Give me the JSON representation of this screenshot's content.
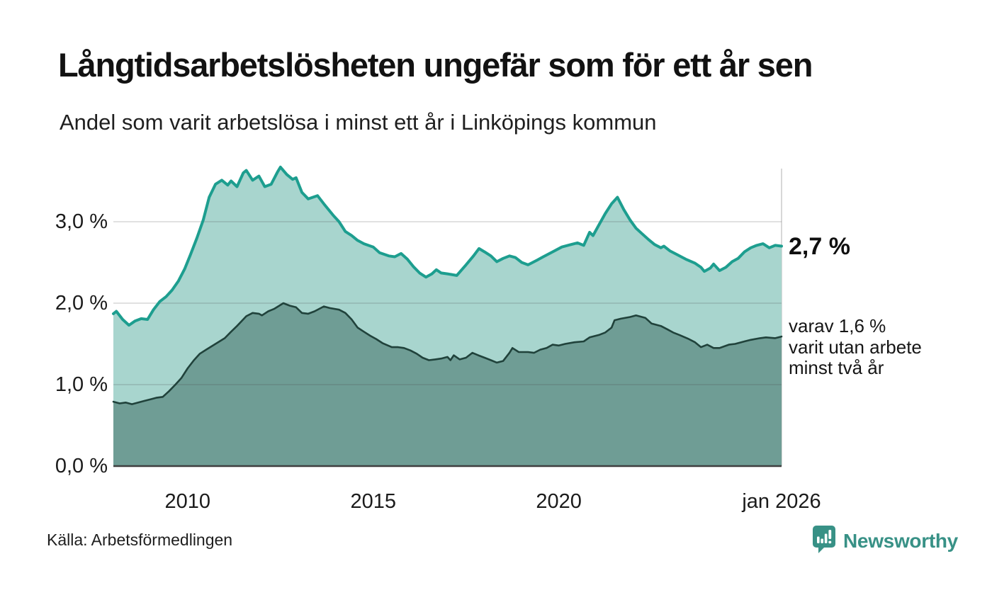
{
  "header": {
    "title": "Långtidsarbetslösheten ungefär som för ett år sen",
    "subtitle": "Andel som varit arbetslösa i minst ett år i Linköpings kommun"
  },
  "footer": {
    "source": "Källa: Arbetsförmedlingen",
    "brand_name": "Newsworthy"
  },
  "colors": {
    "teal_line": "#1D9E8F",
    "light_fill": "#A8D5CE",
    "dark_line": "#20423B",
    "dark_fill": "#6F9D95",
    "gridline": "rgba(70,70,70,0.16)",
    "baseline": "#3F3F3F",
    "plot_right_edge": "#D8D8D8",
    "brand": "#389186",
    "text": "#141414"
  },
  "chart_data": {
    "type": "area",
    "title": "Långtidsarbetslösheten ungefär som för ett år sen",
    "subtitle": "Andel som varit arbetslösa i minst ett år i Linköpings kommun",
    "xlabel": "",
    "ylabel": "",
    "xlim": [
      2008,
      2026
    ],
    "ylim": [
      0,
      3.8
    ],
    "grid": "horizontal",
    "legend": "none",
    "x_ticks": [
      {
        "x": 2010,
        "label": "2010"
      },
      {
        "x": 2015,
        "label": "2015"
      },
      {
        "x": 2020,
        "label": "2020"
      },
      {
        "x": 2026,
        "label": "jan 2026"
      }
    ],
    "y_ticks": [
      {
        "y": 0,
        "label": "0,0 %"
      },
      {
        "y": 1,
        "label": "1,0 %"
      },
      {
        "y": 2,
        "label": "2,0 %"
      },
      {
        "y": 3,
        "label": "3,0 %"
      }
    ],
    "annotations": {
      "end_value_label": "2,7 %",
      "breakdown_lines": [
        "varav 1,6 %",
        "varit utan arbete",
        "minst två år"
      ]
    },
    "series": [
      {
        "name": "Andel arbetslösa minst ett år",
        "end_value": 2.7,
        "line_color": "#1D9E8F",
        "fill_color": "#A8D5CE",
        "points": [
          [
            2008.0,
            1.87
          ],
          [
            2008.08,
            1.9
          ],
          [
            2008.25,
            1.8
          ],
          [
            2008.42,
            1.73
          ],
          [
            2008.58,
            1.78
          ],
          [
            2008.75,
            1.81
          ],
          [
            2008.92,
            1.8
          ],
          [
            2009.08,
            1.92
          ],
          [
            2009.25,
            2.02
          ],
          [
            2009.42,
            2.08
          ],
          [
            2009.58,
            2.16
          ],
          [
            2009.75,
            2.27
          ],
          [
            2009.92,
            2.42
          ],
          [
            2010.08,
            2.6
          ],
          [
            2010.25,
            2.8
          ],
          [
            2010.42,
            3.02
          ],
          [
            2010.58,
            3.3
          ],
          [
            2010.75,
            3.46
          ],
          [
            2010.92,
            3.51
          ],
          [
            2011.08,
            3.45
          ],
          [
            2011.17,
            3.5
          ],
          [
            2011.33,
            3.43
          ],
          [
            2011.5,
            3.6
          ],
          [
            2011.58,
            3.63
          ],
          [
            2011.75,
            3.51
          ],
          [
            2011.92,
            3.56
          ],
          [
            2012.08,
            3.43
          ],
          [
            2012.25,
            3.46
          ],
          [
            2012.42,
            3.61
          ],
          [
            2012.5,
            3.67
          ],
          [
            2012.67,
            3.58
          ],
          [
            2012.83,
            3.52
          ],
          [
            2012.92,
            3.54
          ],
          [
            2013.08,
            3.36
          ],
          [
            2013.25,
            3.28
          ],
          [
            2013.5,
            3.32
          ],
          [
            2013.67,
            3.22
          ],
          [
            2013.92,
            3.08
          ],
          [
            2014.08,
            3.0
          ],
          [
            2014.25,
            2.88
          ],
          [
            2014.42,
            2.83
          ],
          [
            2014.58,
            2.77
          ],
          [
            2014.75,
            2.73
          ],
          [
            2015.0,
            2.69
          ],
          [
            2015.17,
            2.62
          ],
          [
            2015.42,
            2.58
          ],
          [
            2015.58,
            2.57
          ],
          [
            2015.75,
            2.61
          ],
          [
            2015.92,
            2.54
          ],
          [
            2016.08,
            2.45
          ],
          [
            2016.25,
            2.37
          ],
          [
            2016.42,
            2.32
          ],
          [
            2016.58,
            2.36
          ],
          [
            2016.7,
            2.41
          ],
          [
            2016.83,
            2.37
          ],
          [
            2017.0,
            2.36
          ],
          [
            2017.25,
            2.34
          ],
          [
            2017.5,
            2.47
          ],
          [
            2017.7,
            2.58
          ],
          [
            2017.85,
            2.67
          ],
          [
            2018.0,
            2.63
          ],
          [
            2018.17,
            2.58
          ],
          [
            2018.33,
            2.51
          ],
          [
            2018.5,
            2.55
          ],
          [
            2018.67,
            2.58
          ],
          [
            2018.83,
            2.56
          ],
          [
            2019.0,
            2.5
          ],
          [
            2019.17,
            2.47
          ],
          [
            2019.42,
            2.53
          ],
          [
            2019.58,
            2.57
          ],
          [
            2019.83,
            2.63
          ],
          [
            2020.08,
            2.69
          ],
          [
            2020.33,
            2.72
          ],
          [
            2020.5,
            2.74
          ],
          [
            2020.67,
            2.71
          ],
          [
            2020.83,
            2.87
          ],
          [
            2020.92,
            2.83
          ],
          [
            2021.08,
            2.96
          ],
          [
            2021.25,
            3.1
          ],
          [
            2021.42,
            3.22
          ],
          [
            2021.58,
            3.3
          ],
          [
            2021.75,
            3.15
          ],
          [
            2021.92,
            3.02
          ],
          [
            2022.08,
            2.92
          ],
          [
            2022.25,
            2.85
          ],
          [
            2022.42,
            2.78
          ],
          [
            2022.58,
            2.72
          ],
          [
            2022.75,
            2.68
          ],
          [
            2022.83,
            2.7
          ],
          [
            2023.0,
            2.64
          ],
          [
            2023.17,
            2.6
          ],
          [
            2023.42,
            2.54
          ],
          [
            2023.67,
            2.49
          ],
          [
            2023.83,
            2.44
          ],
          [
            2023.92,
            2.39
          ],
          [
            2024.08,
            2.43
          ],
          [
            2024.17,
            2.48
          ],
          [
            2024.33,
            2.4
          ],
          [
            2024.5,
            2.44
          ],
          [
            2024.67,
            2.51
          ],
          [
            2024.83,
            2.55
          ],
          [
            2025.0,
            2.63
          ],
          [
            2025.17,
            2.68
          ],
          [
            2025.33,
            2.71
          ],
          [
            2025.5,
            2.73
          ],
          [
            2025.67,
            2.68
          ],
          [
            2025.83,
            2.71
          ],
          [
            2026.0,
            2.7
          ]
        ]
      },
      {
        "name": "Andel arbetslösa minst två år",
        "end_value": 1.6,
        "line_color": "#20423B",
        "fill_color": "#6F9D95",
        "points": [
          [
            2008.0,
            0.79
          ],
          [
            2008.17,
            0.77
          ],
          [
            2008.33,
            0.78
          ],
          [
            2008.5,
            0.76
          ],
          [
            2008.67,
            0.78
          ],
          [
            2008.83,
            0.8
          ],
          [
            2009.0,
            0.82
          ],
          [
            2009.17,
            0.84
          ],
          [
            2009.33,
            0.85
          ],
          [
            2009.5,
            0.92
          ],
          [
            2009.67,
            1.0
          ],
          [
            2009.83,
            1.08
          ],
          [
            2010.0,
            1.2
          ],
          [
            2010.17,
            1.3
          ],
          [
            2010.33,
            1.38
          ],
          [
            2010.5,
            1.43
          ],
          [
            2010.75,
            1.5
          ],
          [
            2011.0,
            1.57
          ],
          [
            2011.17,
            1.65
          ],
          [
            2011.33,
            1.72
          ],
          [
            2011.58,
            1.84
          ],
          [
            2011.75,
            1.88
          ],
          [
            2011.92,
            1.87
          ],
          [
            2012.0,
            1.85
          ],
          [
            2012.17,
            1.9
          ],
          [
            2012.33,
            1.93
          ],
          [
            2012.58,
            2.0
          ],
          [
            2012.75,
            1.97
          ],
          [
            2012.92,
            1.95
          ],
          [
            2013.08,
            1.88
          ],
          [
            2013.25,
            1.87
          ],
          [
            2013.42,
            1.9
          ],
          [
            2013.67,
            1.96
          ],
          [
            2013.83,
            1.94
          ],
          [
            2014.08,
            1.92
          ],
          [
            2014.25,
            1.88
          ],
          [
            2014.42,
            1.8
          ],
          [
            2014.58,
            1.7
          ],
          [
            2014.75,
            1.65
          ],
          [
            2014.92,
            1.6
          ],
          [
            2015.08,
            1.56
          ],
          [
            2015.25,
            1.51
          ],
          [
            2015.5,
            1.46
          ],
          [
            2015.67,
            1.46
          ],
          [
            2015.83,
            1.45
          ],
          [
            2016.0,
            1.42
          ],
          [
            2016.17,
            1.38
          ],
          [
            2016.33,
            1.33
          ],
          [
            2016.5,
            1.3
          ],
          [
            2016.67,
            1.31
          ],
          [
            2016.83,
            1.32
          ],
          [
            2017.0,
            1.34
          ],
          [
            2017.08,
            1.3
          ],
          [
            2017.17,
            1.36
          ],
          [
            2017.33,
            1.31
          ],
          [
            2017.5,
            1.33
          ],
          [
            2017.67,
            1.39
          ],
          [
            2017.83,
            1.36
          ],
          [
            2018.0,
            1.33
          ],
          [
            2018.17,
            1.3
          ],
          [
            2018.33,
            1.27
          ],
          [
            2018.5,
            1.29
          ],
          [
            2018.67,
            1.39
          ],
          [
            2018.75,
            1.45
          ],
          [
            2018.92,
            1.4
          ],
          [
            2019.17,
            1.4
          ],
          [
            2019.33,
            1.39
          ],
          [
            2019.5,
            1.43
          ],
          [
            2019.67,
            1.45
          ],
          [
            2019.83,
            1.49
          ],
          [
            2020.0,
            1.48
          ],
          [
            2020.17,
            1.5
          ],
          [
            2020.42,
            1.52
          ],
          [
            2020.67,
            1.53
          ],
          [
            2020.83,
            1.58
          ],
          [
            2021.08,
            1.61
          ],
          [
            2021.25,
            1.64
          ],
          [
            2021.42,
            1.7
          ],
          [
            2021.5,
            1.79
          ],
          [
            2021.67,
            1.81
          ],
          [
            2021.92,
            1.83
          ],
          [
            2022.08,
            1.85
          ],
          [
            2022.33,
            1.82
          ],
          [
            2022.5,
            1.75
          ],
          [
            2022.75,
            1.72
          ],
          [
            2022.92,
            1.68
          ],
          [
            2023.08,
            1.64
          ],
          [
            2023.25,
            1.61
          ],
          [
            2023.5,
            1.56
          ],
          [
            2023.67,
            1.52
          ],
          [
            2023.83,
            1.46
          ],
          [
            2024.0,
            1.49
          ],
          [
            2024.17,
            1.45
          ],
          [
            2024.33,
            1.45
          ],
          [
            2024.58,
            1.49
          ],
          [
            2024.75,
            1.5
          ],
          [
            2025.0,
            1.53
          ],
          [
            2025.17,
            1.55
          ],
          [
            2025.42,
            1.57
          ],
          [
            2025.58,
            1.58
          ],
          [
            2025.83,
            1.57
          ],
          [
            2026.0,
            1.59
          ]
        ]
      }
    ]
  }
}
